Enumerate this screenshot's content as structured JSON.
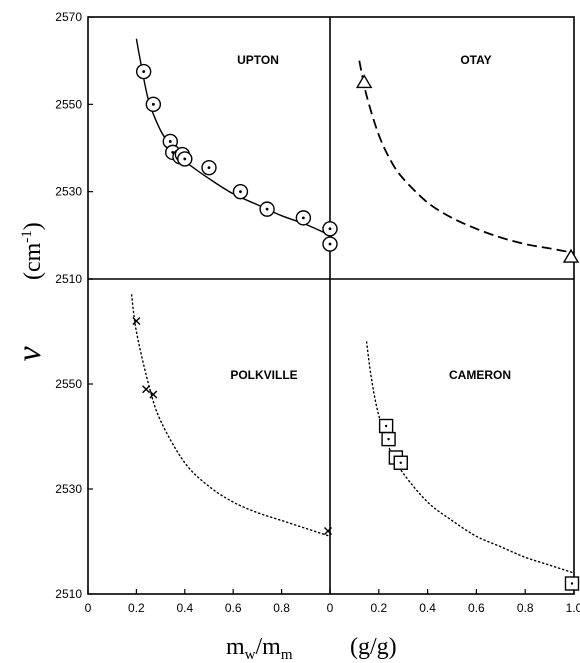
{
  "chart_data": [
    {
      "type": "scatter",
      "title": "UPTON",
      "marker": "circle-dot",
      "curve_style": "solid",
      "xlim": [
        0,
        1.0
      ],
      "ylim": [
        2510,
        2570
      ],
      "series": [
        {
          "x": [
            0.23,
            0.27,
            0.34,
            0.35,
            0.38,
            0.39,
            0.4,
            0.5,
            0.63,
            0.74,
            0.89,
            1.0,
            1.0
          ],
          "y": [
            2557.5,
            2550,
            2541.5,
            2539,
            2538,
            2538.5,
            2537.5,
            2535.5,
            2530,
            2526,
            2524,
            2521.5,
            2518
          ]
        }
      ],
      "curve": {
        "x": [
          0.2,
          0.22,
          0.25,
          0.3,
          0.35,
          0.4,
          0.5,
          0.6,
          0.7,
          0.8,
          0.9,
          1.0
        ],
        "y": [
          2565,
          2559,
          2551,
          2544,
          2540,
          2537,
          2533,
          2529.5,
          2527,
          2524.5,
          2522.5,
          2520
        ]
      }
    },
    {
      "type": "scatter",
      "title": "OTAY",
      "marker": "triangle",
      "curve_style": "dashed",
      "xlim": [
        0,
        1.0
      ],
      "ylim": [
        2510,
        2570
      ],
      "series": [
        {
          "x": [
            0.14,
            1.0
          ],
          "y": [
            2555,
            2515
          ]
        }
      ],
      "curve": {
        "x": [
          0.12,
          0.15,
          0.2,
          0.25,
          0.3,
          0.4,
          0.5,
          0.6,
          0.7,
          0.8,
          0.9,
          1.0
        ],
        "y": [
          2560,
          2552,
          2543,
          2537,
          2533,
          2527.5,
          2524,
          2521.5,
          2519.5,
          2518,
          2517,
          2516
        ]
      }
    },
    {
      "type": "scatter",
      "title": "POLKVILLE",
      "marker": "x",
      "curve_style": "dotted",
      "xlim": [
        0,
        1.0
      ],
      "ylim": [
        2510,
        2570
      ],
      "series": [
        {
          "x": [
            0.2,
            0.24,
            0.27,
            1.0
          ],
          "y": [
            2562,
            2549,
            2548,
            2522
          ]
        }
      ],
      "curve": {
        "x": [
          0.18,
          0.2,
          0.25,
          0.3,
          0.4,
          0.5,
          0.6,
          0.7,
          0.8,
          0.9,
          1.0
        ],
        "y": [
          2567,
          2560,
          2550,
          2543,
          2535,
          2530.5,
          2527.5,
          2525.5,
          2524,
          2522.5,
          2521
        ]
      }
    },
    {
      "type": "scatter",
      "title": "CAMERON",
      "marker": "square-dot",
      "curve_style": "dotted",
      "xlim": [
        0,
        1.0
      ],
      "ylim": [
        2510,
        2570
      ],
      "series": [
        {
          "x": [
            0.23,
            0.24,
            0.27,
            0.29,
            1.0
          ],
          "y": [
            2542,
            2539.5,
            2536,
            2535,
            2512
          ]
        }
      ],
      "curve": {
        "x": [
          0.15,
          0.17,
          0.2,
          0.25,
          0.3,
          0.4,
          0.5,
          0.6,
          0.7,
          0.8,
          0.9,
          1.0
        ],
        "y": [
          2558,
          2551,
          2544,
          2537,
          2533,
          2527.5,
          2524,
          2521,
          2519,
          2517,
          2515.5,
          2514
        ]
      }
    }
  ],
  "axes": {
    "ylabel_symbol": "ν",
    "ylabel_unit": "(cm",
    "ylabel_exp": "-1",
    "ylabel_close": ")",
    "xlabel_main": "m",
    "xlabel_sub1": "w",
    "xlabel_slash": "/m",
    "xlabel_sub2": "m",
    "xlabel_unit": "(g/g)",
    "y_ticks_top": [
      "2570",
      "2550",
      "2530",
      "2510"
    ],
    "y_ticks_bottom": [
      "2550",
      "2530",
      "2510"
    ],
    "x_ticks_left": [
      "0",
      "0.2",
      "0.4",
      "0.6",
      "0.8",
      "0"
    ],
    "x_ticks_right": [
      "0.2",
      "0.4",
      "0.6",
      "0.8",
      "1.0"
    ]
  },
  "style": {
    "ink": "#000000",
    "background": "#ffffff"
  }
}
